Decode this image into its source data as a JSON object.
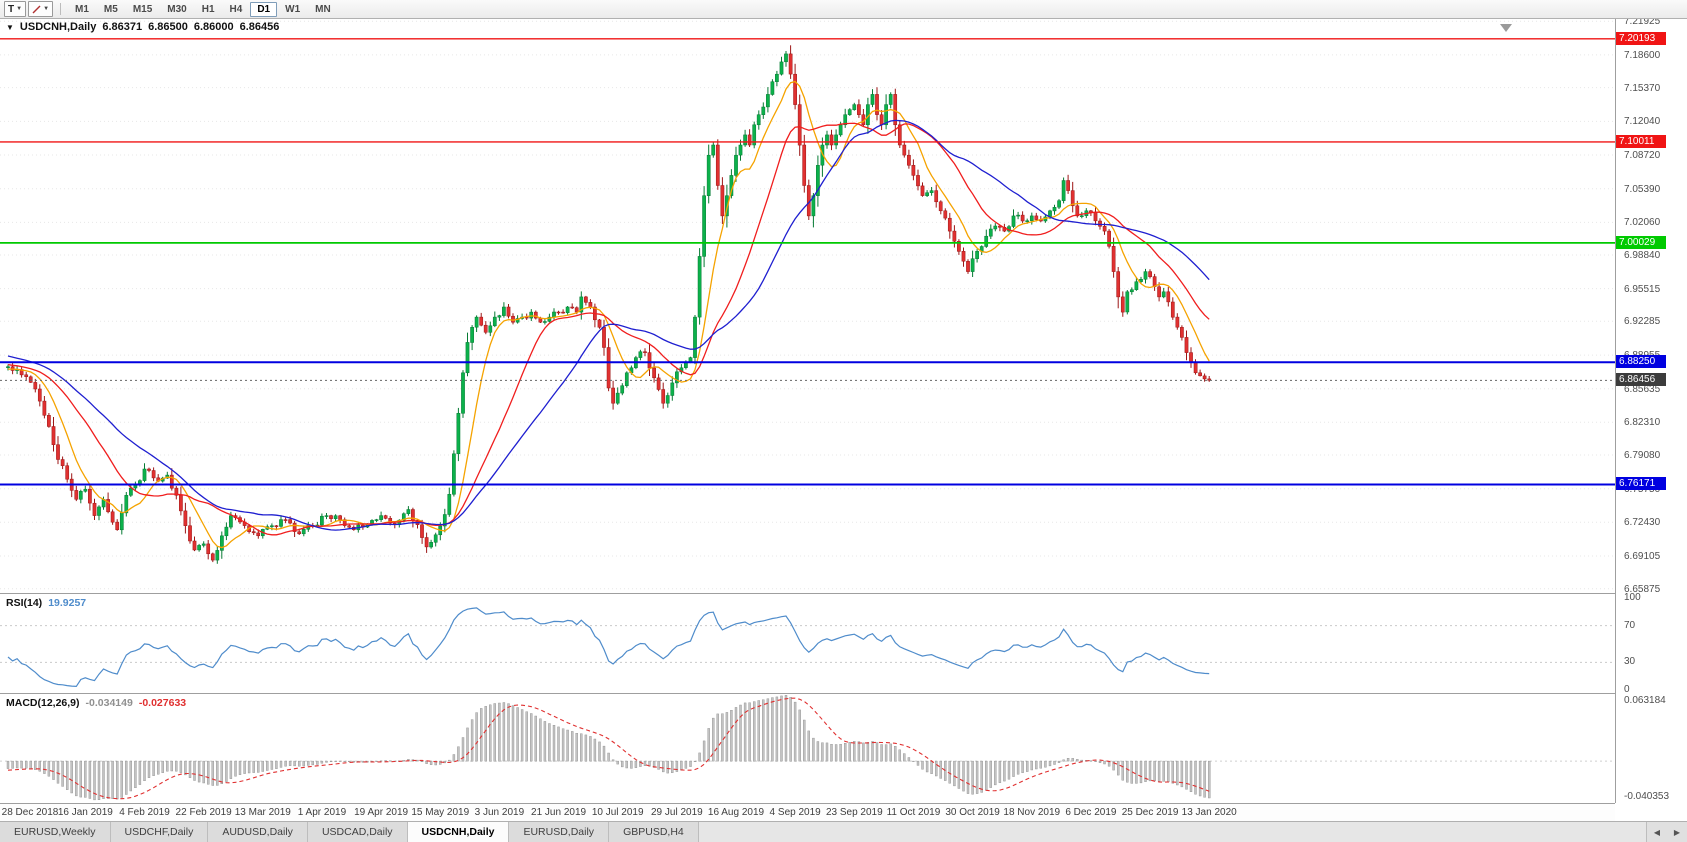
{
  "toolbar": {
    "text_tool": "T",
    "timeframes": [
      "M1",
      "M5",
      "M15",
      "M30",
      "H1",
      "H4",
      "D1",
      "W1",
      "MN"
    ],
    "active_timeframe": "D1"
  },
  "tabs": {
    "items": [
      "EURUSD,Weekly",
      "USDCHF,Daily",
      "AUDUSD,Daily",
      "USDCAD,Daily",
      "USDCNH,Daily",
      "EURUSD,Daily",
      "GBPUSD,H4"
    ],
    "active_index": 4
  },
  "chart_data": {
    "type": "candlestick",
    "symbol_period": "USDCNH,Daily",
    "ohlc": {
      "open": "6.86371",
      "high": "6.86500",
      "low": "6.86000",
      "close": "6.86456"
    },
    "count": 265,
    "bar_step": 4.55,
    "x_offset": 8,
    "ylim": [
      6.6545,
      7.2225
    ],
    "y_ticks": [
      "7.21925",
      "7.18600",
      "7.15370",
      "7.12040",
      "7.08720",
      "7.05390",
      "7.02060",
      "6.98840",
      "6.95515",
      "6.92285",
      "6.88955",
      "6.85635",
      "6.82310",
      "6.79080",
      "6.75750",
      "6.72430",
      "6.69105",
      "6.65875"
    ],
    "x_labels": [
      "28 Dec 2018",
      "16 Jan 2019",
      "4 Feb 2019",
      "22 Feb 2019",
      "13 Mar 2019",
      "1 Apr 2019",
      "19 Apr 2019",
      "15 May 2019",
      "3 Jun 2019",
      "21 Jun 2019",
      "10 Jul 2019",
      "29 Jul 2019",
      "16 Aug 2019",
      "4 Sep 2019",
      "23 Sep 2019",
      "11 Oct 2019",
      "30 Oct 2019",
      "18 Nov 2019",
      "6 Dec 2019",
      "25 Dec 2019",
      "13 Jan 2020"
    ],
    "first_label_index": 4,
    "candles_per_label": 13,
    "warmup_anchors": [
      [
        -60,
        6.952
      ],
      [
        -48,
        6.938
      ],
      [
        -36,
        6.916
      ],
      [
        -24,
        6.896
      ],
      [
        -12,
        6.882
      ],
      [
        -4,
        6.874
      ]
    ],
    "price_path_anchors": [
      [
        0,
        6.878
      ],
      [
        3,
        6.87
      ],
      [
        6,
        6.856
      ],
      [
        8,
        6.83
      ],
      [
        10,
        6.801
      ],
      [
        13,
        6.767
      ],
      [
        15,
        6.747
      ],
      [
        17,
        6.757
      ],
      [
        19,
        6.731
      ],
      [
        21,
        6.747
      ],
      [
        24,
        6.717
      ],
      [
        26,
        6.751
      ],
      [
        28,
        6.761
      ],
      [
        30,
        6.777
      ],
      [
        33,
        6.765
      ],
      [
        35,
        6.771
      ],
      [
        37,
        6.751
      ],
      [
        39,
        6.721
      ],
      [
        41,
        6.697
      ],
      [
        43,
        6.703
      ],
      [
        45,
        6.687
      ],
      [
        47,
        6.711
      ],
      [
        49,
        6.731
      ],
      [
        52,
        6.721
      ],
      [
        55,
        6.711
      ],
      [
        58,
        6.721
      ],
      [
        61,
        6.727
      ],
      [
        64,
        6.713
      ],
      [
        67,
        6.721
      ],
      [
        70,
        6.731
      ],
      [
        73,
        6.727
      ],
      [
        76,
        6.717
      ],
      [
        79,
        6.722
      ],
      [
        82,
        6.731
      ],
      [
        85,
        6.722
      ],
      [
        88,
        6.737
      ],
      [
        90,
        6.722
      ],
      [
        92,
        6.7
      ],
      [
        94,
        6.712
      ],
      [
        96,
        6.732
      ],
      [
        97,
        6.752
      ],
      [
        98,
        6.792
      ],
      [
        99,
        6.832
      ],
      [
        100,
        6.872
      ],
      [
        101,
        6.902
      ],
      [
        102,
        6.917
      ],
      [
        103,
        6.927
      ],
      [
        105,
        6.912
      ],
      [
        107,
        6.927
      ],
      [
        109,
        6.937
      ],
      [
        111,
        6.922
      ],
      [
        113,
        6.927
      ],
      [
        115,
        6.932
      ],
      [
        117,
        6.922
      ],
      [
        119,
        6.927
      ],
      [
        121,
        6.932
      ],
      [
        123,
        6.937
      ],
      [
        125,
        6.932
      ],
      [
        126,
        6.947
      ],
      [
        128,
        6.937
      ],
      [
        130,
        6.917
      ],
      [
        131,
        6.897
      ],
      [
        132,
        6.857
      ],
      [
        133,
        6.842
      ],
      [
        134,
        6.852
      ],
      [
        136,
        6.872
      ],
      [
        138,
        6.887
      ],
      [
        140,
        6.892
      ],
      [
        142,
        6.867
      ],
      [
        144,
        6.842
      ],
      [
        146,
        6.862
      ],
      [
        148,
        6.877
      ],
      [
        150,
        6.887
      ],
      [
        151,
        6.927
      ],
      [
        152,
        6.987
      ],
      [
        153,
        7.047
      ],
      [
        154,
        7.087
      ],
      [
        155,
        7.097
      ],
      [
        156,
        7.057
      ],
      [
        157,
        7.027
      ],
      [
        158,
        7.047
      ],
      [
        159,
        7.067
      ],
      [
        160,
        7.087
      ],
      [
        161,
        7.097
      ],
      [
        162,
        7.107
      ],
      [
        163,
        7.097
      ],
      [
        164,
        7.117
      ],
      [
        165,
        7.127
      ],
      [
        167,
        7.147
      ],
      [
        169,
        7.167
      ],
      [
        171,
        7.187
      ],
      [
        172,
        7.167
      ],
      [
        173,
        7.137
      ],
      [
        174,
        7.097
      ],
      [
        175,
        7.057
      ],
      [
        176,
        7.027
      ],
      [
        177,
        7.047
      ],
      [
        178,
        7.077
      ],
      [
        179,
        7.097
      ],
      [
        180,
        7.107
      ],
      [
        181,
        7.097
      ],
      [
        182,
        7.107
      ],
      [
        183,
        7.117
      ],
      [
        184,
        7.127
      ],
      [
        185,
        7.132
      ],
      [
        186,
        7.137
      ],
      [
        187,
        7.127
      ],
      [
        188,
        7.117
      ],
      [
        189,
        7.137
      ],
      [
        190,
        7.147
      ],
      [
        191,
        7.127
      ],
      [
        192,
        7.117
      ],
      [
        193,
        7.137
      ],
      [
        194,
        7.147
      ],
      [
        195,
        7.117
      ],
      [
        196,
        7.097
      ],
      [
        197,
        7.087
      ],
      [
        198,
        7.077
      ],
      [
        199,
        7.067
      ],
      [
        201,
        7.047
      ],
      [
        203,
        7.052
      ],
      [
        205,
        7.032
      ],
      [
        207,
        7.012
      ],
      [
        209,
        6.992
      ],
      [
        211,
        6.972
      ],
      [
        213,
        6.992
      ],
      [
        215,
        7.007
      ],
      [
        217,
        7.017
      ],
      [
        219,
        7.012
      ],
      [
        221,
        7.027
      ],
      [
        223,
        7.022
      ],
      [
        225,
        7.027
      ],
      [
        227,
        7.022
      ],
      [
        229,
        7.032
      ],
      [
        231,
        7.042
      ],
      [
        232,
        7.062
      ],
      [
        233,
        7.052
      ],
      [
        234,
        7.037
      ],
      [
        235,
        7.027
      ],
      [
        237,
        7.032
      ],
      [
        239,
        7.022
      ],
      [
        241,
        7.012
      ],
      [
        242,
        6.997
      ],
      [
        243,
        6.972
      ],
      [
        244,
        6.947
      ],
      [
        245,
        6.932
      ],
      [
        246,
        6.952
      ],
      [
        248,
        6.962
      ],
      [
        250,
        6.972
      ],
      [
        251,
        6.967
      ],
      [
        252,
        6.957
      ],
      [
        253,
        6.947
      ],
      [
        254,
        6.952
      ],
      [
        255,
        6.942
      ],
      [
        256,
        6.927
      ],
      [
        257,
        6.917
      ],
      [
        258,
        6.907
      ],
      [
        259,
        6.892
      ],
      [
        260,
        6.882
      ],
      [
        261,
        6.872
      ],
      [
        262,
        6.869
      ],
      [
        263,
        6.866
      ],
      [
        264,
        6.8646
      ]
    ],
    "colors": {
      "bull": "#0cb14b",
      "bear": "#e03131",
      "bull_edge": "#067a33",
      "bear_edge": "#9c1616",
      "grid": "#e7e7e7"
    },
    "moving_averages": [
      {
        "name": "ma-fast",
        "period": 8,
        "color": "#f5a300"
      },
      {
        "name": "ma-mid",
        "period": 20,
        "color": "#f01e1e"
      },
      {
        "name": "ma-slow",
        "period": 34,
        "color": "#1f1fd0"
      }
    ],
    "horizontal_lines": [
      {
        "price": 7.20193,
        "label": "7.20193",
        "color": "#f01414",
        "width": 1.4
      },
      {
        "price": 7.10011,
        "label": "7.10011",
        "color": "#f01414",
        "width": 1.4
      },
      {
        "price": 7.00029,
        "label": "7.00029",
        "color": "#00ca00",
        "width": 1.8
      },
      {
        "price": 6.8825,
        "label": "6.88250",
        "color": "#0000e0",
        "width": 2
      },
      {
        "price": 6.76171,
        "label": "6.76171",
        "color": "#0000e0",
        "width": 2
      }
    ],
    "current_price": {
      "value": 6.86456,
      "label": "6.86456",
      "color": "#3c3c3c"
    },
    "rsi": {
      "label": "RSI(14)",
      "period": 14,
      "value_text": "19.9257",
      "color": "#4f8ccb",
      "levels": [
        70,
        30
      ],
      "axis_labels": [
        100,
        70,
        30,
        0
      ],
      "range": [
        0,
        100
      ]
    },
    "macd": {
      "label": "MACD(12,26,9)",
      "fast": 12,
      "slow": 26,
      "signal": 9,
      "main_value_text": "-0.034149",
      "signal_value_text": "-0.027633",
      "range": [
        -0.040353,
        0.063184
      ],
      "axis_top_text": "0.063184",
      "axis_bottom_text": "-0.040353",
      "hist_color": "#c3c3c3",
      "hist_edge": "#8d8d8d",
      "signal_color": "#e03030",
      "main_value_color": "#909090"
    }
  }
}
